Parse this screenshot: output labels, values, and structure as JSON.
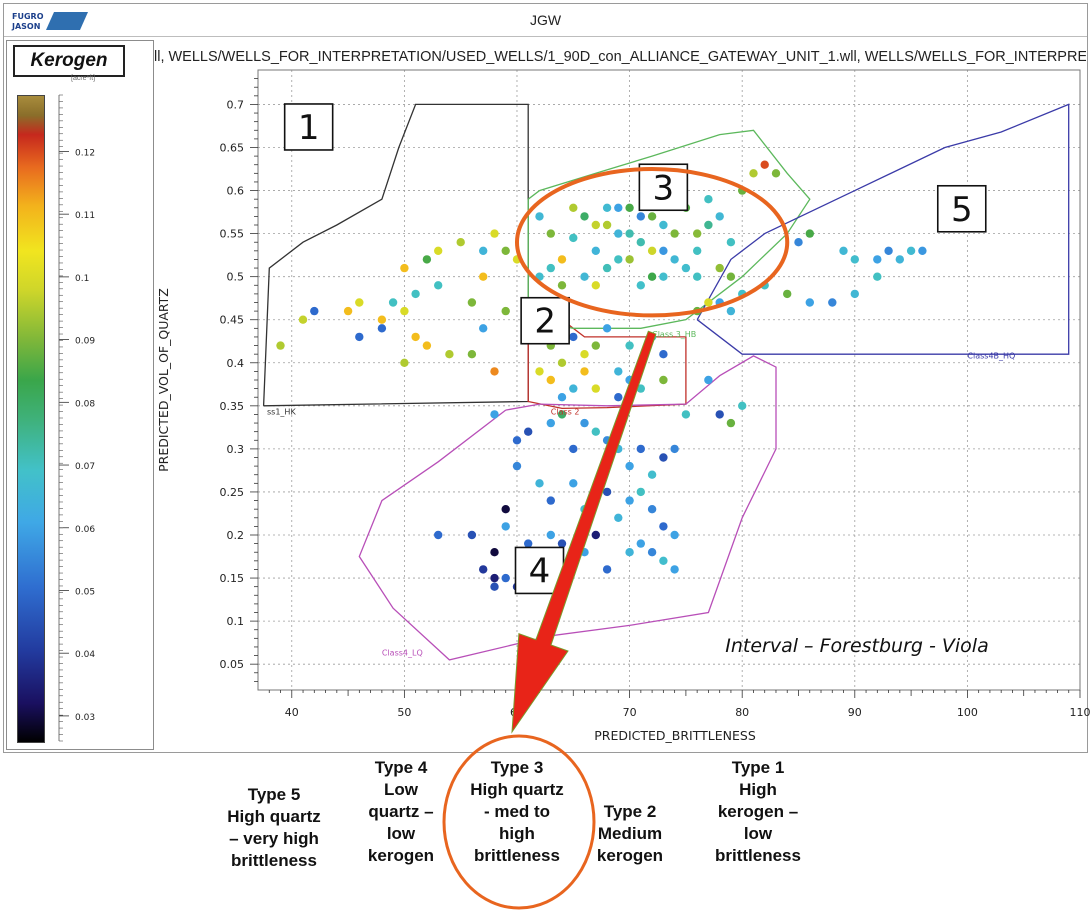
{
  "window": {
    "title": "JGW",
    "logo_text": [
      "FUGRO",
      "JASON"
    ]
  },
  "legend": {
    "title": "Kerogen",
    "unit": "[acre*ft]",
    "ticks": [
      "0.12",
      "0.11",
      "0.1",
      "0.09",
      "0.08",
      "0.07",
      "0.06",
      "0.05",
      "0.04",
      "0.03"
    ]
  },
  "plot": {
    "header": "ll, WELLS/WELLS_FOR_INTERPRETATION/USED_WELLS/1_90D_con_ALLIANCE_GATEWAY_UNIT_1.wll, WELLS/WELLS_FOR_INTERPRE"
  },
  "annotation": {
    "interval": "Interval – Forestburg - Viola"
  },
  "chart_data": {
    "type": "scatter",
    "title": "",
    "xlabel": "PREDICTED_BRITTLENESS",
    "ylabel": "PREDICTED_VOL_OF_QUARTZ",
    "xlim": [
      37,
      110
    ],
    "ylim": [
      0.02,
      0.74
    ],
    "x_ticks": [
      40,
      50,
      60,
      70,
      80,
      90,
      100,
      110
    ],
    "y_ticks": [
      0.05,
      0.1,
      0.15,
      0.2,
      0.25,
      0.3,
      0.35,
      0.4,
      0.45,
      0.5,
      0.55,
      0.6,
      0.65,
      0.7
    ],
    "grid": true,
    "color_variable": "Kerogen",
    "color_range": [
      0.026,
      0.129
    ],
    "polygons": [
      {
        "label": "1",
        "class_name": "ss1_HK",
        "color": "#333333",
        "vertices": [
          [
            37.5,
            0.35
          ],
          [
            38,
            0.51
          ],
          [
            41,
            0.54
          ],
          [
            44,
            0.56
          ],
          [
            48,
            0.59
          ],
          [
            49.5,
            0.65
          ],
          [
            51,
            0.7
          ],
          [
            61,
            0.7
          ],
          [
            61,
            0.355
          ],
          [
            37.5,
            0.35
          ]
        ]
      },
      {
        "label": "2",
        "class_name": "Class 2",
        "color": "#c0302a",
        "vertices": [
          [
            61,
            0.45
          ],
          [
            61,
            0.355
          ],
          [
            64,
            0.347
          ],
          [
            68,
            0.348
          ],
          [
            75,
            0.352
          ],
          [
            75,
            0.43
          ],
          [
            66,
            0.43
          ],
          [
            64,
            0.45
          ],
          [
            61,
            0.45
          ]
        ]
      },
      {
        "label": "3",
        "class_name": "Class 3_HB",
        "color": "#5cb85c",
        "vertices": [
          [
            61,
            0.59
          ],
          [
            62,
            0.6
          ],
          [
            67,
            0.62
          ],
          [
            72,
            0.64
          ],
          [
            78,
            0.665
          ],
          [
            81,
            0.67
          ],
          [
            84,
            0.62
          ],
          [
            86,
            0.59
          ],
          [
            84,
            0.55
          ],
          [
            80,
            0.5
          ],
          [
            75,
            0.45
          ],
          [
            71,
            0.44
          ],
          [
            65,
            0.44
          ],
          [
            61,
            0.45
          ],
          [
            61,
            0.59
          ]
        ]
      },
      {
        "label": "4",
        "class_name": "Class4_LQ",
        "color": "#b84fb8",
        "vertices": [
          [
            59,
            0.345
          ],
          [
            62,
            0.352
          ],
          [
            68,
            0.35
          ],
          [
            75,
            0.352
          ],
          [
            78,
            0.385
          ],
          [
            81,
            0.408
          ],
          [
            83,
            0.395
          ],
          [
            83,
            0.3
          ],
          [
            80,
            0.22
          ],
          [
            77,
            0.11
          ],
          [
            70,
            0.095
          ],
          [
            63,
            0.083
          ],
          [
            54,
            0.055
          ],
          [
            49,
            0.115
          ],
          [
            46,
            0.175
          ],
          [
            48,
            0.24
          ],
          [
            53,
            0.285
          ],
          [
            59,
            0.345
          ]
        ]
      },
      {
        "label": "5",
        "class_name": "Class4B_HQ",
        "color": "#3b3ba8",
        "vertices": [
          [
            76,
            0.45
          ],
          [
            79,
            0.52
          ],
          [
            82,
            0.55
          ],
          [
            90,
            0.6
          ],
          [
            98,
            0.65
          ],
          [
            103,
            0.668
          ],
          [
            109,
            0.7
          ],
          [
            109,
            0.41
          ],
          [
            80,
            0.41
          ],
          [
            76,
            0.45
          ]
        ]
      }
    ],
    "points": [
      {
        "x": 63,
        "y": 0.55,
        "k": 0.09
      },
      {
        "x": 65,
        "y": 0.545,
        "k": 0.07
      },
      {
        "x": 66,
        "y": 0.57,
        "k": 0.08
      },
      {
        "x": 67,
        "y": 0.53,
        "k": 0.065
      },
      {
        "x": 68,
        "y": 0.56,
        "k": 0.095
      },
      {
        "x": 69,
        "y": 0.52,
        "k": 0.07
      },
      {
        "x": 70,
        "y": 0.58,
        "k": 0.085
      },
      {
        "x": 71,
        "y": 0.54,
        "k": 0.072
      },
      {
        "x": 72,
        "y": 0.57,
        "k": 0.088
      },
      {
        "x": 73,
        "y": 0.5,
        "k": 0.068
      },
      {
        "x": 74,
        "y": 0.55,
        "k": 0.09
      },
      {
        "x": 75,
        "y": 0.58,
        "k": 0.086
      },
      {
        "x": 76,
        "y": 0.53,
        "k": 0.07
      },
      {
        "x": 77,
        "y": 0.56,
        "k": 0.075
      },
      {
        "x": 78,
        "y": 0.51,
        "k": 0.092
      },
      {
        "x": 79,
        "y": 0.54,
        "k": 0.07
      },
      {
        "x": 80,
        "y": 0.6,
        "k": 0.088
      },
      {
        "x": 81,
        "y": 0.62,
        "k": 0.095
      },
      {
        "x": 82,
        "y": 0.63,
        "k": 0.12
      },
      {
        "x": 83,
        "y": 0.62,
        "k": 0.09
      },
      {
        "x": 64,
        "y": 0.52,
        "k": 0.11
      },
      {
        "x": 66,
        "y": 0.5,
        "k": 0.066
      },
      {
        "x": 67,
        "y": 0.49,
        "k": 0.1
      },
      {
        "x": 68,
        "y": 0.51,
        "k": 0.071
      },
      {
        "x": 69,
        "y": 0.55,
        "k": 0.065
      },
      {
        "x": 70,
        "y": 0.52,
        "k": 0.093
      },
      {
        "x": 71,
        "y": 0.49,
        "k": 0.069
      },
      {
        "x": 72,
        "y": 0.53,
        "k": 0.098
      },
      {
        "x": 73,
        "y": 0.56,
        "k": 0.067
      },
      {
        "x": 74,
        "y": 0.59,
        "k": 0.072
      },
      {
        "x": 75,
        "y": 0.51,
        "k": 0.068
      },
      {
        "x": 76,
        "y": 0.55,
        "k": 0.091
      },
      {
        "x": 77,
        "y": 0.59,
        "k": 0.07
      },
      {
        "x": 78,
        "y": 0.57,
        "k": 0.066
      },
      {
        "x": 62,
        "y": 0.57,
        "k": 0.066
      },
      {
        "x": 63,
        "y": 0.51,
        "k": 0.07
      },
      {
        "x": 65,
        "y": 0.58,
        "k": 0.095
      },
      {
        "x": 68,
        "y": 0.58,
        "k": 0.067
      },
      {
        "x": 70,
        "y": 0.55,
        "k": 0.072
      },
      {
        "x": 72,
        "y": 0.5,
        "k": 0.084
      },
      {
        "x": 74,
        "y": 0.52,
        "k": 0.066
      },
      {
        "x": 76,
        "y": 0.5,
        "k": 0.07
      },
      {
        "x": 79,
        "y": 0.5,
        "k": 0.089
      },
      {
        "x": 80,
        "y": 0.48,
        "k": 0.069
      },
      {
        "x": 71,
        "y": 0.57,
        "k": 0.055
      },
      {
        "x": 73,
        "y": 0.53,
        "k": 0.058
      },
      {
        "x": 69,
        "y": 0.58,
        "k": 0.06
      },
      {
        "x": 67,
        "y": 0.56,
        "k": 0.097
      },
      {
        "x": 64,
        "y": 0.49,
        "k": 0.09
      },
      {
        "x": 62,
        "y": 0.5,
        "k": 0.068
      },
      {
        "x": 82,
        "y": 0.49,
        "k": 0.07
      },
      {
        "x": 84,
        "y": 0.48,
        "k": 0.088
      },
      {
        "x": 86,
        "y": 0.55,
        "k": 0.085
      },
      {
        "x": 86,
        "y": 0.47,
        "k": 0.06
      },
      {
        "x": 88,
        "y": 0.47,
        "k": 0.055
      },
      {
        "x": 89,
        "y": 0.53,
        "k": 0.066
      },
      {
        "x": 90,
        "y": 0.52,
        "k": 0.068
      },
      {
        "x": 92,
        "y": 0.52,
        "k": 0.06
      },
      {
        "x": 93,
        "y": 0.53,
        "k": 0.055
      },
      {
        "x": 94,
        "y": 0.52,
        "k": 0.065
      },
      {
        "x": 95,
        "y": 0.53,
        "k": 0.067
      },
      {
        "x": 96,
        "y": 0.53,
        "k": 0.058
      },
      {
        "x": 92,
        "y": 0.5,
        "k": 0.07
      },
      {
        "x": 90,
        "y": 0.48,
        "k": 0.066
      },
      {
        "x": 85,
        "y": 0.54,
        "k": 0.055
      },
      {
        "x": 39,
        "y": 0.42,
        "k": 0.095
      },
      {
        "x": 41,
        "y": 0.45,
        "k": 0.097
      },
      {
        "x": 42,
        "y": 0.46,
        "k": 0.05
      },
      {
        "x": 45,
        "y": 0.46,
        "k": 0.11
      },
      {
        "x": 46,
        "y": 0.43,
        "k": 0.05
      },
      {
        "x": 46,
        "y": 0.47,
        "k": 0.1
      },
      {
        "x": 48,
        "y": 0.45,
        "k": 0.11
      },
      {
        "x": 49,
        "y": 0.47,
        "k": 0.07
      },
      {
        "x": 50,
        "y": 0.46,
        "k": 0.1
      },
      {
        "x": 50,
        "y": 0.51,
        "k": 0.11
      },
      {
        "x": 50,
        "y": 0.4,
        "k": 0.095
      },
      {
        "x": 51,
        "y": 0.48,
        "k": 0.07
      },
      {
        "x": 52,
        "y": 0.52,
        "k": 0.085
      },
      {
        "x": 53,
        "y": 0.49,
        "k": 0.07
      },
      {
        "x": 55,
        "y": 0.54,
        "k": 0.095
      },
      {
        "x": 56,
        "y": 0.47,
        "k": 0.09
      },
      {
        "x": 57,
        "y": 0.5,
        "k": 0.11
      },
      {
        "x": 58,
        "y": 0.55,
        "k": 0.1
      },
      {
        "x": 59,
        "y": 0.46,
        "k": 0.09
      },
      {
        "x": 60,
        "y": 0.52,
        "k": 0.1
      },
      {
        "x": 52,
        "y": 0.42,
        "k": 0.11
      },
      {
        "x": 54,
        "y": 0.41,
        "k": 0.095
      },
      {
        "x": 56,
        "y": 0.41,
        "k": 0.09
      },
      {
        "x": 51,
        "y": 0.43,
        "k": 0.11
      },
      {
        "x": 57,
        "y": 0.44,
        "k": 0.06
      },
      {
        "x": 58,
        "y": 0.39,
        "k": 0.115
      },
      {
        "x": 57,
        "y": 0.53,
        "k": 0.065
      },
      {
        "x": 59,
        "y": 0.53,
        "k": 0.09
      },
      {
        "x": 53,
        "y": 0.53,
        "k": 0.1
      },
      {
        "x": 48,
        "y": 0.44,
        "k": 0.05
      },
      {
        "x": 62,
        "y": 0.44,
        "k": 0.07
      },
      {
        "x": 63,
        "y": 0.42,
        "k": 0.09
      },
      {
        "x": 64,
        "y": 0.4,
        "k": 0.095
      },
      {
        "x": 65,
        "y": 0.43,
        "k": 0.05
      },
      {
        "x": 66,
        "y": 0.41,
        "k": 0.1
      },
      {
        "x": 67,
        "y": 0.42,
        "k": 0.09
      },
      {
        "x": 68,
        "y": 0.44,
        "k": 0.06
      },
      {
        "x": 69,
        "y": 0.39,
        "k": 0.065
      },
      {
        "x": 70,
        "y": 0.42,
        "k": 0.07
      },
      {
        "x": 71,
        "y": 0.4,
        "k": 0.085
      },
      {
        "x": 72,
        "y": 0.43,
        "k": 0.07
      },
      {
        "x": 73,
        "y": 0.38,
        "k": 0.09
      },
      {
        "x": 63,
        "y": 0.38,
        "k": 0.11
      },
      {
        "x": 65,
        "y": 0.37,
        "k": 0.065
      },
      {
        "x": 67,
        "y": 0.37,
        "k": 0.1
      },
      {
        "x": 69,
        "y": 0.36,
        "k": 0.05
      },
      {
        "x": 71,
        "y": 0.37,
        "k": 0.07
      },
      {
        "x": 62,
        "y": 0.39,
        "k": 0.1
      },
      {
        "x": 64,
        "y": 0.36,
        "k": 0.06
      },
      {
        "x": 66,
        "y": 0.39,
        "k": 0.11
      },
      {
        "x": 73,
        "y": 0.41,
        "k": 0.05
      },
      {
        "x": 70,
        "y": 0.38,
        "k": 0.06
      },
      {
        "x": 58,
        "y": 0.34,
        "k": 0.06
      },
      {
        "x": 60,
        "y": 0.31,
        "k": 0.05
      },
      {
        "x": 61,
        "y": 0.32,
        "k": 0.045
      },
      {
        "x": 63,
        "y": 0.33,
        "k": 0.06
      },
      {
        "x": 64,
        "y": 0.34,
        "k": 0.08
      },
      {
        "x": 65,
        "y": 0.3,
        "k": 0.05
      },
      {
        "x": 66,
        "y": 0.33,
        "k": 0.058
      },
      {
        "x": 67,
        "y": 0.32,
        "k": 0.07
      },
      {
        "x": 68,
        "y": 0.31,
        "k": 0.056
      },
      {
        "x": 69,
        "y": 0.3,
        "k": 0.065
      },
      {
        "x": 70,
        "y": 0.28,
        "k": 0.06
      },
      {
        "x": 71,
        "y": 0.3,
        "k": 0.05
      },
      {
        "x": 72,
        "y": 0.27,
        "k": 0.068
      },
      {
        "x": 73,
        "y": 0.29,
        "k": 0.045
      },
      {
        "x": 74,
        "y": 0.3,
        "k": 0.055
      },
      {
        "x": 75,
        "y": 0.34,
        "k": 0.07
      },
      {
        "x": 77,
        "y": 0.38,
        "k": 0.06
      },
      {
        "x": 78,
        "y": 0.34,
        "k": 0.045
      },
      {
        "x": 79,
        "y": 0.33,
        "k": 0.088
      },
      {
        "x": 80,
        "y": 0.35,
        "k": 0.07
      },
      {
        "x": 60,
        "y": 0.28,
        "k": 0.055
      },
      {
        "x": 62,
        "y": 0.26,
        "k": 0.065
      },
      {
        "x": 63,
        "y": 0.24,
        "k": 0.05
      },
      {
        "x": 65,
        "y": 0.26,
        "k": 0.06
      },
      {
        "x": 66,
        "y": 0.23,
        "k": 0.068
      },
      {
        "x": 68,
        "y": 0.25,
        "k": 0.045
      },
      {
        "x": 69,
        "y": 0.22,
        "k": 0.065
      },
      {
        "x": 70,
        "y": 0.24,
        "k": 0.06
      },
      {
        "x": 71,
        "y": 0.25,
        "k": 0.07
      },
      {
        "x": 72,
        "y": 0.23,
        "k": 0.055
      },
      {
        "x": 73,
        "y": 0.21,
        "k": 0.05
      },
      {
        "x": 74,
        "y": 0.2,
        "k": 0.06
      },
      {
        "x": 67,
        "y": 0.2,
        "k": 0.035
      },
      {
        "x": 64,
        "y": 0.19,
        "k": 0.045
      },
      {
        "x": 66,
        "y": 0.18,
        "k": 0.06
      },
      {
        "x": 61,
        "y": 0.19,
        "k": 0.05
      },
      {
        "x": 53,
        "y": 0.2,
        "k": 0.05
      },
      {
        "x": 56,
        "y": 0.2,
        "k": 0.045
      },
      {
        "x": 58,
        "y": 0.18,
        "k": 0.03
      },
      {
        "x": 59,
        "y": 0.23,
        "k": 0.03
      },
      {
        "x": 59,
        "y": 0.21,
        "k": 0.06
      },
      {
        "x": 57,
        "y": 0.16,
        "k": 0.04
      },
      {
        "x": 58,
        "y": 0.15,
        "k": 0.035
      },
      {
        "x": 58,
        "y": 0.14,
        "k": 0.045
      },
      {
        "x": 59,
        "y": 0.15,
        "k": 0.05
      },
      {
        "x": 60,
        "y": 0.14,
        "k": 0.04
      },
      {
        "x": 61,
        "y": 0.16,
        "k": 0.055
      },
      {
        "x": 62,
        "y": 0.15,
        "k": 0.03
      },
      {
        "x": 63,
        "y": 0.2,
        "k": 0.06
      },
      {
        "x": 70,
        "y": 0.18,
        "k": 0.065
      },
      {
        "x": 71,
        "y": 0.19,
        "k": 0.06
      },
      {
        "x": 72,
        "y": 0.18,
        "k": 0.055
      },
      {
        "x": 73,
        "y": 0.17,
        "k": 0.068
      },
      {
        "x": 74,
        "y": 0.16,
        "k": 0.06
      },
      {
        "x": 68,
        "y": 0.16,
        "k": 0.05
      },
      {
        "x": 61,
        "y": 0.47,
        "k": 0.09
      },
      {
        "x": 62,
        "y": 0.47,
        "k": 0.1
      },
      {
        "x": 76,
        "y": 0.46,
        "k": 0.088
      },
      {
        "x": 78,
        "y": 0.47,
        "k": 0.06
      },
      {
        "x": 79,
        "y": 0.46,
        "k": 0.065
      },
      {
        "x": 77,
        "y": 0.47,
        "k": 0.1
      }
    ],
    "region_labels": [
      {
        "text": "1",
        "x": 41.5,
        "y": 0.675
      },
      {
        "text": "2",
        "x": 62.5,
        "y": 0.45
      },
      {
        "text": "3",
        "x": 73,
        "y": 0.605
      },
      {
        "text": "4",
        "x": 62,
        "y": 0.16
      },
      {
        "text": "5",
        "x": 99.5,
        "y": 0.58
      }
    ],
    "arrow": {
      "from": [
        72,
        0.435
      ],
      "to": [
        59.5,
        0.03
      ]
    },
    "ellipse": {
      "cx": 72,
      "cy": 0.54,
      "rx": 12,
      "ry": 0.085
    }
  },
  "captions": [
    {
      "lines": [
        "Type 5",
        "High quartz",
        "– very high",
        "brittleness"
      ]
    },
    {
      "lines": [
        "Type 4",
        "Low",
        "quartz –",
        "low",
        "kerogen"
      ]
    },
    {
      "lines": [
        "Type 3",
        "High quartz",
        "- med to",
        "high",
        "brittleness"
      ]
    },
    {
      "lines": [
        "Type 2",
        "Medium",
        "kerogen"
      ]
    },
    {
      "lines": [
        "Type 1",
        "High",
        "kerogen –",
        "low",
        "brittleness"
      ]
    }
  ],
  "colors": {
    "ellipse": "#e8651f",
    "arrow": "#e82418",
    "grid": "#9e9e9e"
  }
}
